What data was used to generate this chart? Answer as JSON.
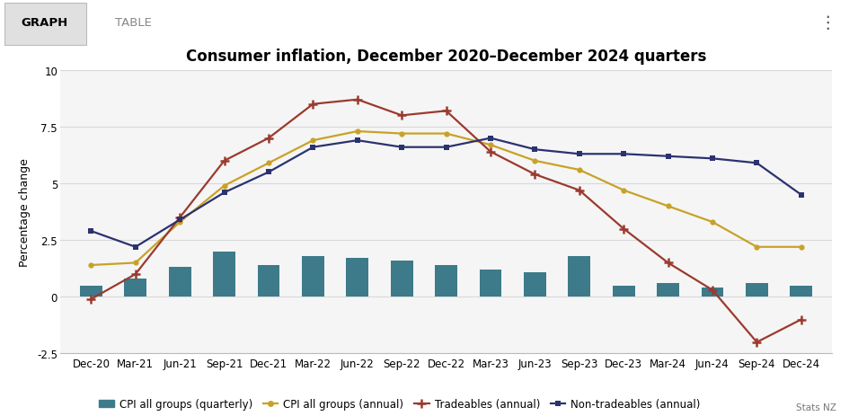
{
  "title": "Consumer inflation, December 2020–December 2024 quarters",
  "ylabel": "Percentage change",
  "labels": [
    "Dec-20",
    "Mar-21",
    "Jun-21",
    "Sep-21",
    "Dec-21",
    "Mar-22",
    "Jun-22",
    "Sep-22",
    "Dec-22",
    "Mar-23",
    "Jun-23",
    "Sep-23",
    "Dec-23",
    "Mar-24",
    "Jun-24",
    "Sep-24",
    "Dec-24"
  ],
  "cpi_quarterly": [
    0.5,
    0.8,
    1.3,
    2.0,
    1.4,
    1.8,
    1.7,
    1.6,
    1.4,
    1.2,
    1.1,
    1.8,
    0.5,
    0.6,
    0.4,
    0.6,
    0.5
  ],
  "cpi_annual": [
    1.4,
    1.5,
    3.3,
    4.9,
    5.9,
    6.9,
    7.3,
    7.2,
    7.2,
    6.7,
    6.0,
    5.6,
    4.7,
    4.0,
    3.3,
    2.2,
    2.2
  ],
  "tradeables": [
    -0.1,
    1.0,
    3.5,
    6.0,
    7.0,
    8.5,
    8.7,
    8.0,
    8.2,
    6.4,
    5.4,
    4.7,
    3.0,
    1.5,
    0.3,
    -2.0,
    -1.0
  ],
  "non_tradeables": [
    2.9,
    2.2,
    3.4,
    4.6,
    5.5,
    6.6,
    6.9,
    6.6,
    6.6,
    7.0,
    6.5,
    6.3,
    6.3,
    6.2,
    6.1,
    5.9,
    4.5
  ],
  "bar_color": "#3d7a8a",
  "cpi_annual_color": "#c8a228",
  "tradeables_color": "#9b3a2e",
  "non_tradeables_color": "#2b3270",
  "ylim": [
    -2.5,
    10
  ],
  "yticks": [
    -2.5,
    0,
    2.5,
    5,
    7.5,
    10
  ],
  "chart_bg": "#f5f5f5",
  "outer_bg": "#ffffff",
  "grid_color": "#d8d8d8",
  "tab_active_bg": "#e0e0e0",
  "tab_text_active": "#000000",
  "tab_text_inactive": "#888888",
  "title_fontsize": 12,
  "axis_label_fontsize": 9,
  "tick_fontsize": 8.5,
  "legend_fontsize": 8.5
}
